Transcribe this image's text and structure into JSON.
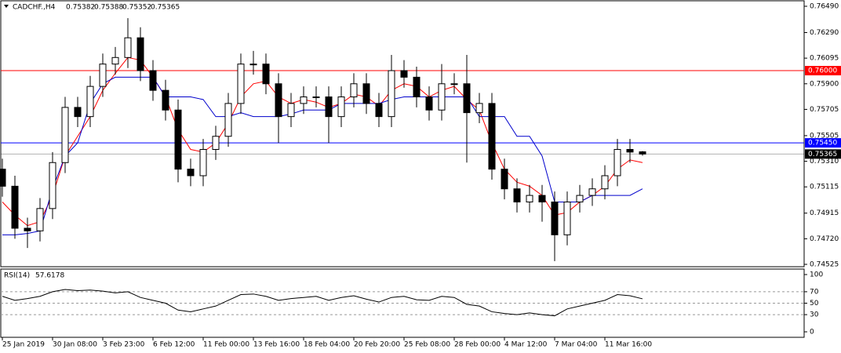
{
  "chart_data": {
    "type": "candlestick",
    "symbol": "CADCHF.,H4",
    "xlim": [
      0,
      256
    ],
    "xticks": [
      {
        "value": 0,
        "label": "25 Jan 2019"
      },
      {
        "value": 16,
        "label": "30 Jan 08:00"
      },
      {
        "value": 32,
        "label": "3 Feb 23:00"
      },
      {
        "value": 48,
        "label": "6 Feb 12:00"
      },
      {
        "value": 64,
        "label": "11 Feb 00:00"
      },
      {
        "value": 80,
        "label": "13 Feb 16:00"
      },
      {
        "value": 96,
        "label": "18 Feb 04:00"
      },
      {
        "value": 112,
        "label": "20 Feb 20:00"
      },
      {
        "value": 128,
        "label": "25 Feb 08:00"
      },
      {
        "value": 144,
        "label": "28 Feb 00:00"
      },
      {
        "value": 160,
        "label": "4 Mar 12:00"
      },
      {
        "value": 176,
        "label": "7 Mar 04:00"
      },
      {
        "value": 192,
        "label": "11 Mar 16:00"
      }
    ],
    "ylim": [
      0.74525,
      0.7649
    ],
    "yticks": [
      {
        "value": 0.7649,
        "label": "0.76490"
      },
      {
        "value": 0.7629,
        "label": "0.76290"
      },
      0.76095,
      {
        "value": 0.759,
        "label": "0.75900"
      },
      0.75705,
      0.75505,
      {
        "value": 0.7531,
        "label": "0.75310"
      },
      0.75115,
      0.74915,
      {
        "value": 0.7472,
        "label": "0.74720"
      },
      0.74525
    ],
    "levels": [
      {
        "value": 0.76,
        "label": "0.76000",
        "color": "#ff0000"
      },
      {
        "value": 0.7545,
        "label": "0.75450",
        "color": "#0000ff"
      },
      {
        "value": 0.75365,
        "label": "0.75365",
        "color": "#000000"
      }
    ],
    "x": [
      0,
      4,
      8,
      12,
      16,
      20,
      24,
      28,
      32,
      36,
      40,
      44,
      48,
      52,
      56,
      60,
      64,
      68,
      72,
      76,
      80,
      84,
      88,
      92,
      96,
      100,
      104,
      108,
      112,
      116,
      120,
      124,
      128,
      132,
      136,
      140,
      144,
      148,
      152,
      156,
      160,
      164,
      168,
      172,
      176,
      180,
      184,
      188,
      192,
      196,
      200,
      204
    ],
    "open": [
      0.7525,
      0.7512,
      0.748,
      0.7478,
      0.7495,
      0.753,
      0.7572,
      0.7565,
      0.7588,
      0.7605,
      0.761,
      0.7625,
      0.76,
      0.7585,
      0.757,
      0.7525,
      0.752,
      0.754,
      0.755,
      0.7575,
      0.7605,
      0.7605,
      0.759,
      0.7565,
      0.7575,
      0.758,
      0.758,
      0.7565,
      0.758,
      0.759,
      0.7575,
      0.7565,
      0.76,
      0.7595,
      0.758,
      0.757,
      0.759,
      0.759,
      0.7568,
      0.7575,
      0.7525,
      0.751,
      0.75,
      0.7505,
      0.75,
      0.7475,
      0.75,
      0.7505,
      0.751,
      0.752,
      0.754,
      0.75382
    ],
    "high": [
      0.7533,
      0.752,
      0.7488,
      0.7503,
      0.7538,
      0.758,
      0.758,
      0.7596,
      0.7613,
      0.7618,
      0.764,
      0.7633,
      0.7608,
      0.7593,
      0.7578,
      0.7533,
      0.7548,
      0.7558,
      0.7583,
      0.7613,
      0.7615,
      0.7613,
      0.7598,
      0.7583,
      0.7588,
      0.7588,
      0.7588,
      0.7588,
      0.7598,
      0.7598,
      0.7583,
      0.7612,
      0.7608,
      0.7603,
      0.7588,
      0.7605,
      0.7598,
      0.7612,
      0.7583,
      0.7583,
      0.7533,
      0.7518,
      0.7513,
      0.7513,
      0.7508,
      0.7508,
      0.7513,
      0.7518,
      0.7528,
      0.7548,
      0.7548,
      0.75388
    ],
    "low": [
      0.7504,
      0.7472,
      0.7465,
      0.747,
      0.7487,
      0.7522,
      0.7557,
      0.7557,
      0.758,
      0.7597,
      0.7602,
      0.7592,
      0.7577,
      0.7562,
      0.7515,
      0.7512,
      0.7512,
      0.7532,
      0.7542,
      0.7567,
      0.7597,
      0.7582,
      0.7545,
      0.7557,
      0.7567,
      0.7572,
      0.7545,
      0.7557,
      0.7572,
      0.7567,
      0.7557,
      0.7557,
      0.7587,
      0.7572,
      0.7562,
      0.7562,
      0.7582,
      0.753,
      0.756,
      0.7517,
      0.7502,
      0.7492,
      0.7492,
      0.7485,
      0.7455,
      0.7467,
      0.7492,
      0.7497,
      0.7502,
      0.7512,
      0.753,
      0.75352
    ],
    "close": [
      0.7512,
      0.748,
      0.7478,
      0.7495,
      0.753,
      0.7572,
      0.7565,
      0.7588,
      0.7605,
      0.761,
      0.7625,
      0.76,
      0.7585,
      0.757,
      0.7525,
      0.752,
      0.754,
      0.755,
      0.7575,
      0.7605,
      0.7605,
      0.759,
      0.7565,
      0.7575,
      0.758,
      0.758,
      0.7565,
      0.758,
      0.759,
      0.7575,
      0.7565,
      0.76,
      0.7595,
      0.758,
      0.757,
      0.759,
      0.759,
      0.7568,
      0.7575,
      0.7525,
      0.751,
      0.75,
      0.7505,
      0.75,
      0.7475,
      0.75,
      0.7505,
      0.751,
      0.752,
      0.754,
      0.7538,
      0.75365
    ],
    "series": [
      {
        "color": "#ff0000",
        "values": [
          0.75,
          0.749,
          0.7482,
          0.7485,
          0.7505,
          0.7535,
          0.755,
          0.7565,
          0.7585,
          0.7598,
          0.761,
          0.7608,
          0.7595,
          0.758,
          0.7555,
          0.754,
          0.7538,
          0.7545,
          0.756,
          0.758,
          0.759,
          0.7592,
          0.758,
          0.7575,
          0.7578,
          0.7576,
          0.7572,
          0.7575,
          0.7582,
          0.758,
          0.7573,
          0.7585,
          0.759,
          0.7588,
          0.758,
          0.7585,
          0.7588,
          0.7578,
          0.757,
          0.7545,
          0.7525,
          0.7515,
          0.7512,
          0.7505,
          0.749,
          0.7492,
          0.75,
          0.7505,
          0.7512,
          0.7525,
          0.7532,
          0.753
        ]
      },
      {
        "color": "#0000cc",
        "values": [
          0.7475,
          0.7475,
          0.7476,
          0.7478,
          0.751,
          0.7535,
          0.7545,
          0.7575,
          0.759,
          0.7595,
          0.7595,
          0.7595,
          0.7595,
          0.758,
          0.758,
          0.758,
          0.7578,
          0.7565,
          0.7565,
          0.7568,
          0.7565,
          0.7565,
          0.7565,
          0.7567,
          0.757,
          0.757,
          0.757,
          0.7575,
          0.7575,
          0.7575,
          0.7575,
          0.7578,
          0.758,
          0.758,
          0.758,
          0.758,
          0.758,
          0.758,
          0.7565,
          0.7565,
          0.7565,
          0.755,
          0.755,
          0.7535,
          0.75,
          0.75,
          0.75,
          0.7505,
          0.7505,
          0.7505,
          0.7505,
          0.751
        ]
      }
    ],
    "rsi": {
      "title": "RSI(14)",
      "color": "#000000",
      "ylim": [
        0,
        100
      ],
      "yticks": [
        100,
        70,
        50,
        30,
        0
      ],
      "levels": [
        70,
        50,
        30
      ],
      "values": [
        62,
        55,
        58,
        62,
        70,
        74,
        72,
        73,
        71,
        68,
        70,
        60,
        55,
        50,
        38,
        35,
        40,
        45,
        55,
        65,
        66,
        62,
        55,
        58,
        60,
        62,
        55,
        60,
        63,
        57,
        52,
        60,
        62,
        56,
        55,
        62,
        60,
        48,
        45,
        35,
        32,
        30,
        33,
        30,
        28,
        40,
        45,
        50,
        55,
        65,
        63,
        57.6178
      ]
    }
  }
}
